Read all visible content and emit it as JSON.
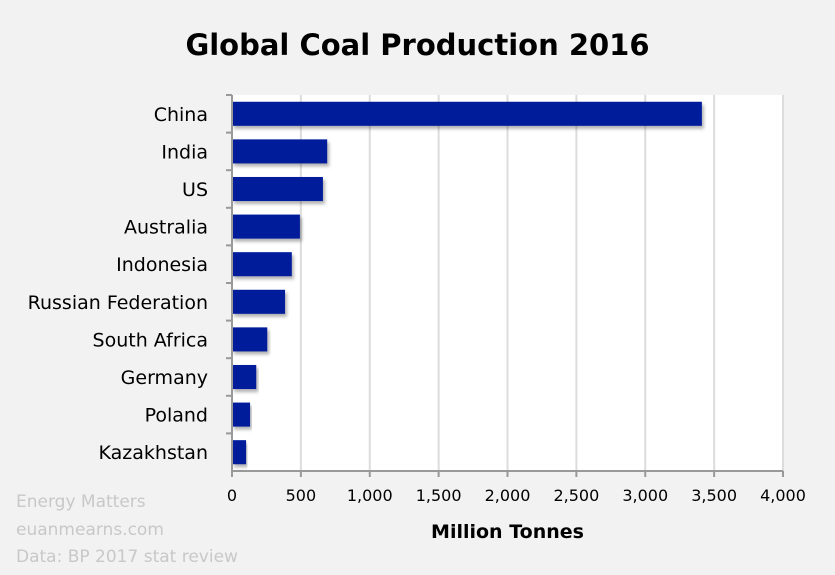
{
  "chart_data": {
    "type": "bar",
    "orientation": "horizontal",
    "title": "Global Coal Production 2016",
    "xlabel": "Million Tonnes",
    "ylabel": "",
    "categories": [
      "China",
      "India",
      "US",
      "Australia",
      "Indonesia",
      "Russian Federation",
      "South Africa",
      "Germany",
      "Poland",
      "Kazakhstan"
    ],
    "values": [
      3411,
      691,
      660,
      493,
      434,
      385,
      256,
      176,
      131,
      102
    ],
    "xlim": [
      0,
      4000
    ],
    "xticks": [
      0,
      500,
      1000,
      1500,
      2000,
      2500,
      3000,
      3500,
      4000
    ],
    "xtick_labels": [
      "0",
      "500",
      "1,000",
      "1,500",
      "2,000",
      "2,500",
      "3,000",
      "3,500",
      "4,000"
    ],
    "grid": "vertical",
    "legend": "none",
    "bar_color": "#021a9b"
  },
  "notes": [
    "Energy Matters",
    "euanmearns.com",
    "Data: BP 2017 stat review"
  ]
}
